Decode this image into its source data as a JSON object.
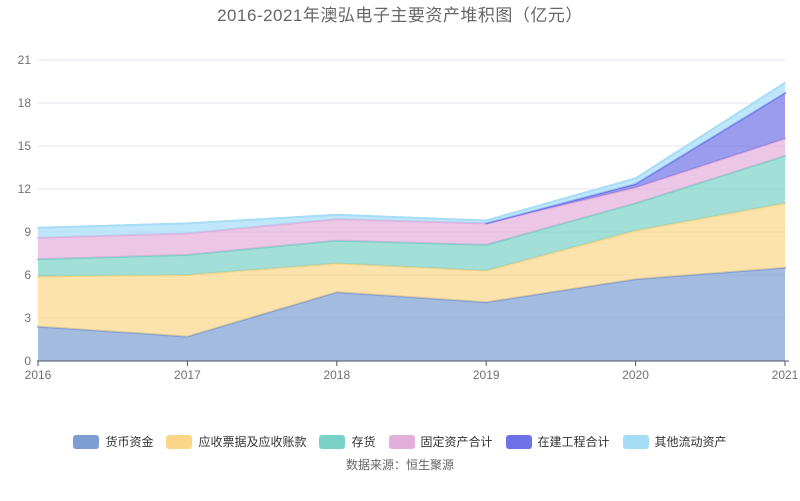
{
  "title": "2016-2021年澳弘电子主要资产堆积图（亿元）",
  "source_note": "数据来源：恒生聚源",
  "chart_data": {
    "type": "area",
    "stacked": true,
    "title": "2016-2021年澳弘电子主要资产堆积图（亿元）",
    "x": [
      "2016",
      "2017",
      "2018",
      "2019",
      "2020",
      "2021"
    ],
    "series": [
      {
        "name": "货币资金",
        "color": "#7E9ED3",
        "values": [
          2.4,
          1.7,
          4.8,
          4.1,
          5.7,
          6.5
        ]
      },
      {
        "name": "应收票据及应收账款",
        "color": "#FBD588",
        "values": [
          3.5,
          4.3,
          2.0,
          2.2,
          3.4,
          4.5
        ]
      },
      {
        "name": "存货",
        "color": "#7AD1C7",
        "values": [
          1.2,
          1.4,
          1.6,
          1.8,
          1.9,
          3.3
        ]
      },
      {
        "name": "固定资产合计",
        "color": "#E2AEDB",
        "values": [
          1.5,
          1.5,
          1.5,
          1.5,
          1.1,
          1.2
        ]
      },
      {
        "name": "在建工程合计",
        "color": "#6F72E6",
        "values": [
          0,
          0,
          0,
          0,
          0.25,
          3.2
        ]
      },
      {
        "name": "其他流动资产",
        "color": "#A5DCF6",
        "values": [
          0.7,
          0.7,
          0.3,
          0.2,
          0.4,
          0.7
        ]
      }
    ],
    "totals_by_year": [
      9.3,
      9.6,
      10.2,
      9.8,
      12.75,
      19.4
    ],
    "xlabel": "",
    "ylabel": "",
    "ylim": [
      0,
      21
    ],
    "yticks": [
      0,
      3,
      6,
      9,
      12,
      15,
      18,
      21
    ],
    "grid": true,
    "fill_opacity": 0.7,
    "legend_position": "bottom"
  },
  "colors": {
    "title_text": "#666666",
    "axis_label": "#6E7079",
    "grid_line": "#E0E6F1",
    "axis_line": "#4E545E",
    "legend_text": "#333333",
    "source_text": "#666666",
    "background": "#FFFFFF"
  }
}
